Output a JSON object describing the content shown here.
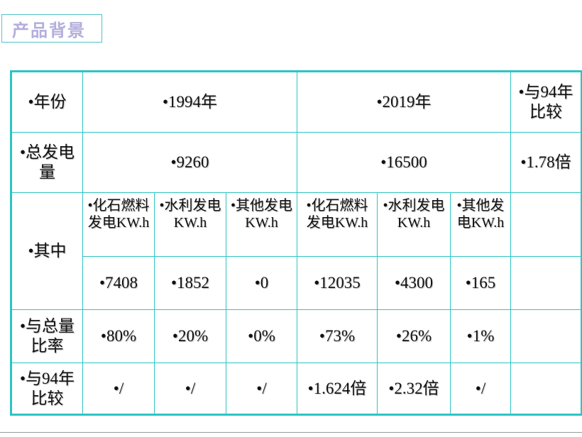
{
  "header": {
    "title": "产品背景"
  },
  "table": {
    "rows": [
      [
        "年份",
        "1994年",
        "2019年",
        "与94年比较"
      ],
      [
        "总发电量",
        "9260",
        "16500",
        "1.78倍"
      ],
      [
        "其中",
        "化石燃料发电KW.h",
        "水利发电KW.h",
        "其他发电KW.h",
        "化石燃料发电KW.h",
        "水利发电KW.h",
        "其他发电KW.h"
      ],
      [
        "7408",
        "1852",
        "0",
        "12035",
        "4300",
        "165"
      ],
      [
        "与总量比率",
        "80%",
        "20%",
        "0%",
        "73%",
        "26%",
        "1%"
      ],
      [
        "与94年比较",
        "/",
        "/",
        "/",
        "1.624倍",
        "2.32倍",
        "/"
      ]
    ]
  }
}
